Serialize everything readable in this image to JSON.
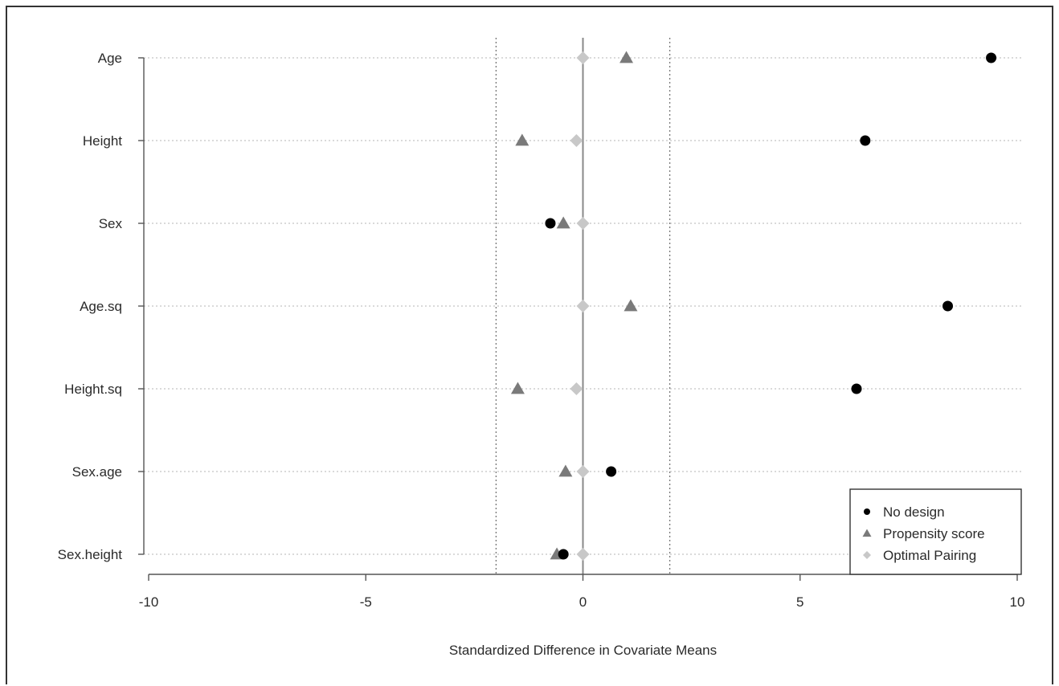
{
  "chart_data": {
    "type": "scatter",
    "title": "",
    "xlabel": "Standardized Difference in Covariate Means",
    "ylabel": "",
    "xlim": [
      -10,
      10
    ],
    "xticks": [
      -10,
      -5,
      0,
      5,
      10
    ],
    "reference_lines": [
      -2,
      2
    ],
    "categories": [
      "Age",
      "Height",
      "Sex",
      "Age.sq",
      "Height.sq",
      "Sex.age",
      "Sex.height"
    ],
    "series": [
      {
        "name": "No design",
        "marker": "circle",
        "color": "#000000",
        "values": [
          9.4,
          6.5,
          -0.75,
          8.4,
          6.3,
          0.65,
          -0.45
        ]
      },
      {
        "name": "Propensity score",
        "marker": "triangle",
        "color": "#7a7a7a",
        "values": [
          1.0,
          -1.4,
          -0.45,
          1.1,
          -1.5,
          -0.4,
          -0.6
        ]
      },
      {
        "name": "Optimal Pairing",
        "marker": "diamond",
        "color": "#c8c8c8",
        "values": [
          0.0,
          -0.15,
          0.0,
          0.0,
          -0.15,
          0.0,
          0.0
        ]
      }
    ],
    "grid": "horizontal-dotted",
    "legend_position": "bottom-right"
  }
}
